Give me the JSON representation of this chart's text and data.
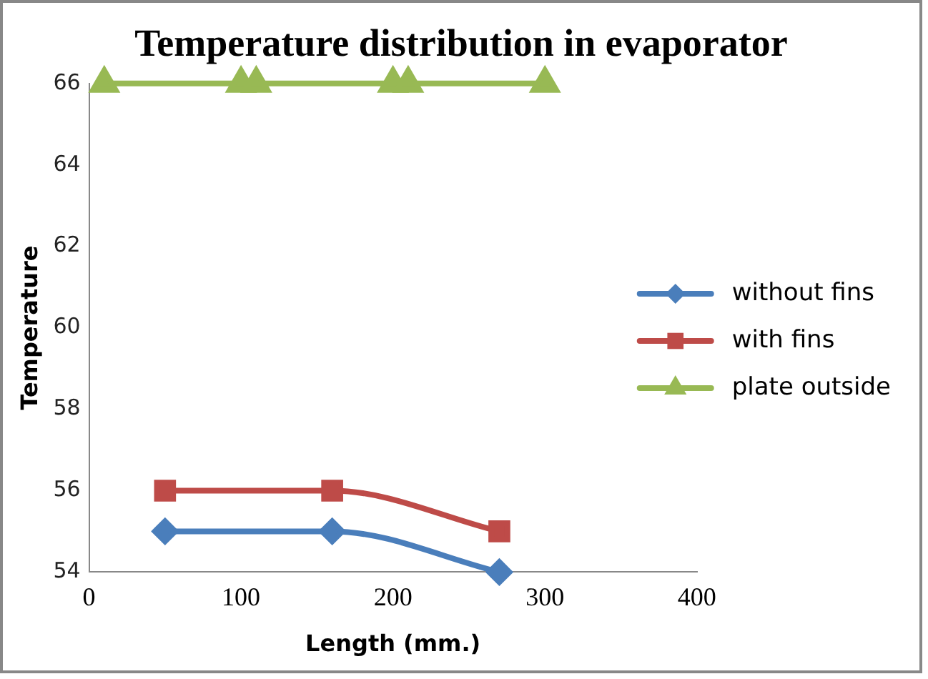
{
  "chart_data": {
    "type": "line",
    "title": "Temperature distribution in evaporator",
    "xlabel": "Length (mm.)",
    "ylabel": "Temperature",
    "xlim": [
      0,
      400
    ],
    "xticks": [
      0,
      100,
      200,
      300,
      400
    ],
    "ylim": [
      54,
      66
    ],
    "yticks": [
      54,
      56,
      58,
      60,
      62,
      64,
      66
    ],
    "grid": false,
    "legend": "right",
    "series": [
      {
        "name": "without fins",
        "color": "#4a7ebb",
        "marker": "diamond",
        "x": [
          50,
          160,
          270
        ],
        "values": [
          55,
          55,
          54
        ]
      },
      {
        "name": "with fins",
        "color": "#be4b48",
        "marker": "square",
        "x": [
          50,
          160,
          270
        ],
        "values": [
          56,
          56,
          55
        ]
      },
      {
        "name": "plate outside",
        "color": "#98b954",
        "marker": "triangle",
        "x": [
          10,
          100,
          110,
          200,
          210,
          300
        ],
        "values": [
          66,
          66,
          66,
          66,
          66,
          66
        ]
      }
    ]
  }
}
